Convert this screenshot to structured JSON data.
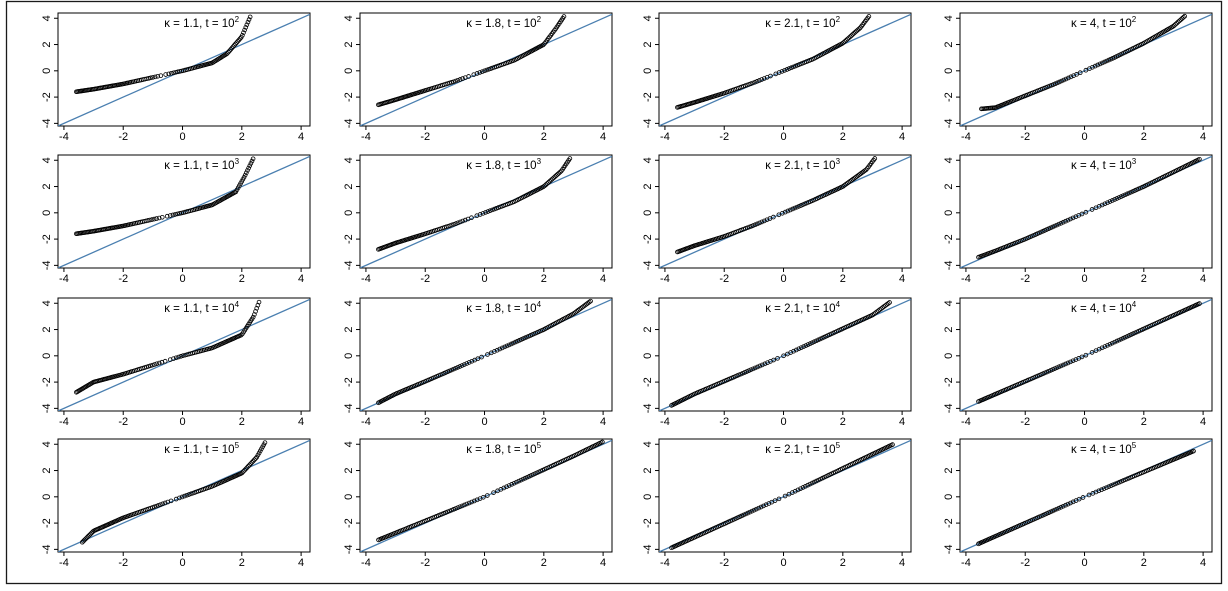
{
  "figure": {
    "border_color": "#1a1a1a",
    "point_color": "#000000",
    "reference_line_color": "#4a7fb0"
  },
  "chart_data": [
    {
      "type": "scatter",
      "title": "κ = 1.1, t = 10",
      "exponent": "2",
      "kappa": 1.1,
      "t_exp": 2,
      "row": 0,
      "col": 0,
      "xlim": [
        -4.2,
        4.3
      ],
      "ylim": [
        -4.2,
        4.4
      ],
      "xticks": [
        -4,
        -2,
        0,
        2,
        4
      ],
      "yticks": [
        -4,
        -2,
        0,
        2,
        4
      ],
      "reference_line": "y = x",
      "x_points": {
        "count": 120,
        "min": -3.6,
        "max": 2.3
      },
      "approx_y_at_x": [
        [
          -3.6,
          -1.6
        ],
        [
          -3,
          -1.4
        ],
        [
          -2,
          -1
        ],
        [
          -1,
          -0.5
        ],
        [
          0,
          0
        ],
        [
          1,
          0.6
        ],
        [
          1.5,
          1.3
        ],
        [
          2,
          2.6
        ],
        [
          2.3,
          4.2
        ]
      ]
    },
    {
      "type": "scatter",
      "title": "κ = 1.8, t = 10",
      "exponent": "2",
      "kappa": 1.8,
      "t_exp": 2,
      "row": 0,
      "col": 1,
      "xlim": [
        -4.2,
        4.3
      ],
      "ylim": [
        -4.2,
        4.4
      ],
      "xticks": [
        -4,
        -2,
        0,
        2,
        4
      ],
      "yticks": [
        -4,
        -2,
        0,
        2,
        4
      ],
      "reference_line": "y = x",
      "x_points": {
        "count": 120,
        "min": -3.6,
        "max": 2.7
      },
      "approx_y_at_x": [
        [
          -3.6,
          -2.6
        ],
        [
          -3,
          -2.2
        ],
        [
          -2,
          -1.5
        ],
        [
          -1,
          -0.8
        ],
        [
          0,
          0
        ],
        [
          1,
          0.8
        ],
        [
          2,
          2
        ],
        [
          2.4,
          3.2
        ],
        [
          2.7,
          4.2
        ]
      ]
    },
    {
      "type": "scatter",
      "title": "κ = 2.1, t = 10",
      "exponent": "2",
      "kappa": 2.1,
      "t_exp": 2,
      "row": 0,
      "col": 2,
      "xlim": [
        -4.2,
        4.3
      ],
      "ylim": [
        -4.2,
        4.4
      ],
      "xticks": [
        -4,
        -2,
        0,
        2,
        4
      ],
      "yticks": [
        -4,
        -2,
        0,
        2,
        4
      ],
      "reference_line": "y = x",
      "x_points": {
        "count": 120,
        "min": -3.6,
        "max": 2.9
      },
      "approx_y_at_x": [
        [
          -3.6,
          -2.8
        ],
        [
          -3,
          -2.4
        ],
        [
          -2,
          -1.7
        ],
        [
          -1,
          -0.9
        ],
        [
          0,
          0
        ],
        [
          1,
          0.9
        ],
        [
          2,
          2.1
        ],
        [
          2.6,
          3.3
        ],
        [
          2.9,
          4.2
        ]
      ]
    },
    {
      "type": "scatter",
      "title": "κ = 4, t = 10",
      "exponent": "2",
      "kappa": 4,
      "t_exp": 2,
      "row": 0,
      "col": 3,
      "xlim": [
        -4.2,
        4.3
      ],
      "ylim": [
        -4.2,
        4.4
      ],
      "xticks": [
        -4,
        -2,
        0,
        2,
        4
      ],
      "yticks": [
        -4,
        -2,
        0,
        2,
        4
      ],
      "reference_line": "y = x",
      "x_points": {
        "count": 120,
        "min": -3.5,
        "max": 3.4
      },
      "approx_y_at_x": [
        [
          -3.5,
          -2.9
        ],
        [
          -3,
          -2.8
        ],
        [
          -2,
          -1.9
        ],
        [
          -1,
          -1
        ],
        [
          0,
          0
        ],
        [
          1,
          1
        ],
        [
          2,
          2.1
        ],
        [
          3,
          3.4
        ],
        [
          3.4,
          4.2
        ]
      ]
    },
    {
      "type": "scatter",
      "title": "κ = 1.1, t = 10",
      "exponent": "3",
      "kappa": 1.1,
      "t_exp": 3,
      "row": 1,
      "col": 0,
      "xlim": [
        -4.2,
        4.3
      ],
      "ylim": [
        -4.2,
        4.4
      ],
      "xticks": [
        -4,
        -2,
        0,
        2,
        4
      ],
      "yticks": [
        -4,
        -2,
        0,
        2,
        4
      ],
      "reference_line": "y = x",
      "x_points": {
        "count": 120,
        "min": -3.6,
        "max": 2.4
      },
      "approx_y_at_x": [
        [
          -3.6,
          -1.6
        ],
        [
          -3,
          -1.4
        ],
        [
          -2,
          -1
        ],
        [
          -1,
          -0.5
        ],
        [
          0,
          0
        ],
        [
          1,
          0.6
        ],
        [
          1.8,
          1.6
        ],
        [
          2.1,
          2.8
        ],
        [
          2.4,
          4.2
        ]
      ]
    },
    {
      "type": "scatter",
      "title": "κ = 1.8, t = 10",
      "exponent": "3",
      "kappa": 1.8,
      "t_exp": 3,
      "row": 1,
      "col": 1,
      "xlim": [
        -4.2,
        4.3
      ],
      "ylim": [
        -4.2,
        4.4
      ],
      "xticks": [
        -4,
        -2,
        0,
        2,
        4
      ],
      "yticks": [
        -4,
        -2,
        0,
        2,
        4
      ],
      "reference_line": "y = x",
      "x_points": {
        "count": 120,
        "min": -3.6,
        "max": 2.9
      },
      "approx_y_at_x": [
        [
          -3.6,
          -2.8
        ],
        [
          -3,
          -2.3
        ],
        [
          -2,
          -1.6
        ],
        [
          -1,
          -0.85
        ],
        [
          0,
          0
        ],
        [
          1,
          0.85
        ],
        [
          2,
          2
        ],
        [
          2.6,
          3.2
        ],
        [
          2.9,
          4.2
        ]
      ]
    },
    {
      "type": "scatter",
      "title": "κ = 2.1, t = 10",
      "exponent": "3",
      "kappa": 2.1,
      "t_exp": 3,
      "row": 1,
      "col": 2,
      "xlim": [
        -4.2,
        4.3
      ],
      "ylim": [
        -4.2,
        4.4
      ],
      "xticks": [
        -4,
        -2,
        0,
        2,
        4
      ],
      "yticks": [
        -4,
        -2,
        0,
        2,
        4
      ],
      "reference_line": "y = x",
      "x_points": {
        "count": 120,
        "min": -3.6,
        "max": 3.1
      },
      "approx_y_at_x": [
        [
          -3.6,
          -3
        ],
        [
          -3,
          -2.5
        ],
        [
          -2,
          -1.8
        ],
        [
          -1,
          -0.95
        ],
        [
          0,
          0
        ],
        [
          1,
          0.95
        ],
        [
          2,
          2
        ],
        [
          2.8,
          3.3
        ],
        [
          3.1,
          4.2
        ]
      ]
    },
    {
      "type": "scatter",
      "title": "κ = 4, t = 10",
      "exponent": "3",
      "kappa": 4,
      "t_exp": 3,
      "row": 1,
      "col": 3,
      "xlim": [
        -4.2,
        4.3
      ],
      "ylim": [
        -4.2,
        4.4
      ],
      "xticks": [
        -4,
        -2,
        0,
        2,
        4
      ],
      "yticks": [
        -4,
        -2,
        0,
        2,
        4
      ],
      "reference_line": "y = x",
      "x_points": {
        "count": 120,
        "min": -3.6,
        "max": 3.9
      },
      "approx_y_at_x": [
        [
          -3.6,
          -3.4
        ],
        [
          -3,
          -2.9
        ],
        [
          -2,
          -2
        ],
        [
          0,
          0
        ],
        [
          2,
          2
        ],
        [
          3,
          3.1
        ],
        [
          3.9,
          4.1
        ]
      ]
    },
    {
      "type": "scatter",
      "title": "κ = 1.1, t = 10",
      "exponent": "4",
      "kappa": 1.1,
      "t_exp": 4,
      "row": 2,
      "col": 0,
      "xlim": [
        -4.2,
        4.3
      ],
      "ylim": [
        -4.2,
        4.4
      ],
      "xticks": [
        -4,
        -2,
        0,
        2,
        4
      ],
      "yticks": [
        -4,
        -2,
        0,
        2,
        4
      ],
      "reference_line": "y = x",
      "x_points": {
        "count": 120,
        "min": -3.6,
        "max": 2.6
      },
      "approx_y_at_x": [
        [
          -3.6,
          -2.8
        ],
        [
          -3,
          -2
        ],
        [
          -2,
          -1.4
        ],
        [
          -1,
          -0.7
        ],
        [
          0,
          0
        ],
        [
          1,
          0.6
        ],
        [
          2,
          1.6
        ],
        [
          2.4,
          3
        ],
        [
          2.6,
          4.2
        ]
      ]
    },
    {
      "type": "scatter",
      "title": "κ = 1.8, t = 10",
      "exponent": "4",
      "kappa": 1.8,
      "t_exp": 4,
      "row": 2,
      "col": 1,
      "xlim": [
        -4.2,
        4.3
      ],
      "ylim": [
        -4.2,
        4.4
      ],
      "xticks": [
        -4,
        -2,
        0,
        2,
        4
      ],
      "yticks": [
        -4,
        -2,
        0,
        2,
        4
      ],
      "reference_line": "y = x",
      "x_points": {
        "count": 120,
        "min": -3.6,
        "max": 3.6
      },
      "approx_y_at_x": [
        [
          -3.6,
          -3.6
        ],
        [
          -3,
          -2.9
        ],
        [
          -2,
          -1.95
        ],
        [
          0,
          0
        ],
        [
          2,
          2
        ],
        [
          3,
          3.2
        ],
        [
          3.6,
          4.2
        ]
      ]
    },
    {
      "type": "scatter",
      "title": "κ = 2.1, t = 10",
      "exponent": "4",
      "kappa": 2.1,
      "t_exp": 4,
      "row": 2,
      "col": 2,
      "xlim": [
        -4.2,
        4.3
      ],
      "ylim": [
        -4.2,
        4.4
      ],
      "xticks": [
        -4,
        -2,
        0,
        2,
        4
      ],
      "yticks": [
        -4,
        -2,
        0,
        2,
        4
      ],
      "reference_line": "y = x",
      "x_points": {
        "count": 120,
        "min": -3.8,
        "max": 3.6
      },
      "approx_y_at_x": [
        [
          -3.8,
          -3.8
        ],
        [
          -3,
          -2.9
        ],
        [
          0,
          0
        ],
        [
          3,
          3.1
        ],
        [
          3.6,
          4.1
        ]
      ]
    },
    {
      "type": "scatter",
      "title": "κ = 4, t = 10",
      "exponent": "4",
      "kappa": 4,
      "t_exp": 4,
      "row": 2,
      "col": 3,
      "xlim": [
        -4.2,
        4.3
      ],
      "ylim": [
        -4.2,
        4.4
      ],
      "xticks": [
        -4,
        -2,
        0,
        2,
        4
      ],
      "yticks": [
        -4,
        -2,
        0,
        2,
        4
      ],
      "reference_line": "y = x",
      "x_points": {
        "count": 120,
        "min": -3.6,
        "max": 3.9
      },
      "approx_y_at_x": [
        [
          -3.6,
          -3.5
        ],
        [
          0,
          0
        ],
        [
          3.9,
          4
        ]
      ]
    },
    {
      "type": "scatter",
      "title": "κ = 1.1, t = 10",
      "exponent": "5",
      "kappa": 1.1,
      "t_exp": 5,
      "row": 3,
      "col": 0,
      "xlim": [
        -4.2,
        4.3
      ],
      "ylim": [
        -4.2,
        4.4
      ],
      "xticks": [
        -4,
        -2,
        0,
        2,
        4
      ],
      "yticks": [
        -4,
        -2,
        0,
        2,
        4
      ],
      "reference_line": "y = x",
      "x_points": {
        "count": 120,
        "min": -3.4,
        "max": 2.8
      },
      "approx_y_at_x": [
        [
          -3.4,
          -3.5
        ],
        [
          -3,
          -2.6
        ],
        [
          -2,
          -1.6
        ],
        [
          -1,
          -0.8
        ],
        [
          0,
          0
        ],
        [
          1,
          0.8
        ],
        [
          2,
          1.8
        ],
        [
          2.5,
          3
        ],
        [
          2.8,
          4.2
        ]
      ]
    },
    {
      "type": "scatter",
      "title": "κ = 1.8, t = 10",
      "exponent": "5",
      "kappa": 1.8,
      "t_exp": 5,
      "row": 3,
      "col": 1,
      "xlim": [
        -4.2,
        4.3
      ],
      "ylim": [
        -4.2,
        4.4
      ],
      "xticks": [
        -4,
        -2,
        0,
        2,
        4
      ],
      "yticks": [
        -4,
        -2,
        0,
        2,
        4
      ],
      "reference_line": "y = x",
      "x_points": {
        "count": 120,
        "min": -3.6,
        "max": 4.0
      },
      "approx_y_at_x": [
        [
          -3.6,
          -3.3
        ],
        [
          0,
          0
        ],
        [
          3,
          3.1
        ],
        [
          4,
          4.2
        ]
      ]
    },
    {
      "type": "scatter",
      "title": "κ = 2.1, t = 10",
      "exponent": "5",
      "kappa": 2.1,
      "t_exp": 5,
      "row": 3,
      "col": 2,
      "xlim": [
        -4.2,
        4.3
      ],
      "ylim": [
        -4.2,
        4.4
      ],
      "xticks": [
        -4,
        -2,
        0,
        2,
        4
      ],
      "yticks": [
        -4,
        -2,
        0,
        2,
        4
      ],
      "reference_line": "y = x",
      "x_points": {
        "count": 120,
        "min": -3.8,
        "max": 3.7
      },
      "approx_y_at_x": [
        [
          -3.8,
          -3.9
        ],
        [
          0,
          0
        ],
        [
          3.7,
          4
        ]
      ]
    },
    {
      "type": "scatter",
      "title": "κ = 4, t = 10",
      "exponent": "5",
      "kappa": 4,
      "t_exp": 5,
      "row": 3,
      "col": 3,
      "xlim": [
        -4.2,
        4.3
      ],
      "ylim": [
        -4.2,
        4.4
      ],
      "xticks": [
        -4,
        -2,
        0,
        2,
        4
      ],
      "yticks": [
        -4,
        -2,
        0,
        2,
        4
      ],
      "reference_line": "y = x",
      "x_points": {
        "count": 120,
        "min": -3.6,
        "max": 3.7
      },
      "approx_y_at_x": [
        [
          -3.6,
          -3.6
        ],
        [
          0,
          0
        ],
        [
          3.7,
          3.5
        ]
      ]
    }
  ]
}
